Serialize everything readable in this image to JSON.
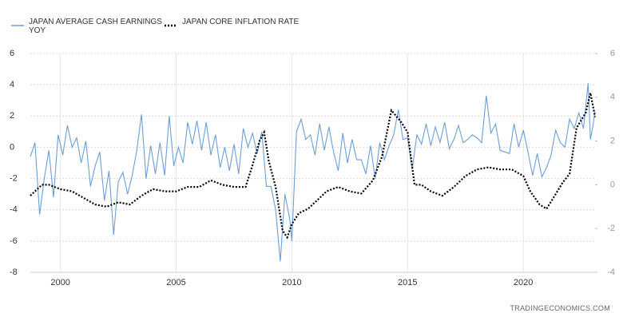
{
  "chart_data": {
    "type": "line",
    "source": "TRADINGECONOMICS.COM",
    "xlim": [
      1998.7,
      2023.1
    ],
    "xticks": [
      2000,
      2005,
      2010,
      2015,
      2020
    ],
    "ylim": [
      -8,
      6
    ],
    "yticks": [
      6,
      4,
      2,
      0,
      -2,
      -4,
      -6,
      -8
    ],
    "y2lim": [
      -4,
      6
    ],
    "y2ticks": [
      6,
      4,
      2,
      0,
      -2,
      -4
    ],
    "grid": true,
    "series": [
      {
        "name": "JAPAN AVERAGE CASH EARNINGS YOY",
        "color": "#6a9fd8",
        "style": "solid",
        "x": [
          1998.7,
          1998.9,
          1999.1,
          1999.3,
          1999.5,
          1999.7,
          1999.9,
          2000.1,
          2000.3,
          2000.5,
          2000.7,
          2000.9,
          2001.1,
          2001.3,
          2001.5,
          2001.7,
          2001.9,
          2002.1,
          2002.3,
          2002.5,
          2002.7,
          2002.9,
          2003.1,
          2003.3,
          2003.5,
          2003.7,
          2003.9,
          2004.1,
          2004.3,
          2004.5,
          2004.7,
          2004.9,
          2005.1,
          2005.3,
          2005.5,
          2005.7,
          2005.9,
          2006.1,
          2006.3,
          2006.5,
          2006.7,
          2006.9,
          2007.1,
          2007.3,
          2007.5,
          2007.7,
          2007.9,
          2008.1,
          2008.3,
          2008.5,
          2008.7,
          2008.9,
          2009.1,
          2009.3,
          2009.5,
          2009.7,
          2009.9,
          2010.0,
          2010.2,
          2010.4,
          2010.6,
          2010.8,
          2011.0,
          2011.2,
          2011.4,
          2011.6,
          2011.8,
          2012.0,
          2012.2,
          2012.4,
          2012.6,
          2012.8,
          2013.0,
          2013.2,
          2013.4,
          2013.6,
          2013.8,
          2014.0,
          2014.2,
          2014.4,
          2014.6,
          2014.8,
          2015.0,
          2015.2,
          2015.4,
          2015.6,
          2015.8,
          2016.0,
          2016.2,
          2016.4,
          2016.6,
          2016.8,
          2017.0,
          2017.2,
          2017.4,
          2017.6,
          2017.8,
          2018.0,
          2018.2,
          2018.4,
          2018.6,
          2018.8,
          2019.0,
          2019.2,
          2019.4,
          2019.6,
          2019.8,
          2020.0,
          2020.2,
          2020.4,
          2020.6,
          2020.8,
          2021.0,
          2021.2,
          2021.4,
          2021.6,
          2021.8,
          2022.0,
          2022.2,
          2022.4,
          2022.6,
          2022.8,
          2022.9,
          2023.0,
          2023.1
        ],
        "values": [
          -0.6,
          0.3,
          -4.3,
          -2,
          -0.2,
          -3.2,
          0.8,
          -0.5,
          1.4,
          0,
          0.6,
          -1,
          0.4,
          -2.5,
          -1.2,
          -0.3,
          -3.4,
          -1.5,
          -5.6,
          -2.2,
          -1.6,
          -3,
          -1.8,
          -0.2,
          2.1,
          -2,
          0.1,
          -1.7,
          0.3,
          -1.8,
          2,
          -1.2,
          0,
          -1,
          1.6,
          0.2,
          1.7,
          -0.2,
          1.6,
          -0.5,
          0.8,
          -1.3,
          0,
          -1.5,
          0.2,
          -1.7,
          1.2,
          0,
          0.9,
          -0.4,
          1,
          -2.5,
          -2.5,
          -4,
          -7.3,
          -3,
          -4.5,
          -6,
          1,
          1.8,
          0.5,
          0.8,
          -0.5,
          1.5,
          -0.2,
          1.3,
          -0.3,
          -1.5,
          0.9,
          -1,
          0.5,
          -0.8,
          -0.8,
          -1.7,
          0.1,
          -2,
          0.3,
          -0.8,
          0.1,
          0.8,
          2.4,
          0.5,
          0.6,
          -1.4,
          0.8,
          0.2,
          1.5,
          0.1,
          1.3,
          0.3,
          1.6,
          -0.1,
          0.5,
          1.4,
          0.3,
          0.5,
          0.8,
          0.6,
          0.3,
          3.3,
          0.9,
          1.5,
          -0.2,
          -0.3,
          -0.4,
          1.5,
          0,
          1.1,
          -0.3,
          -1.8,
          -0.4,
          -1.9,
          -1.3,
          -0.5,
          1.1,
          0.3,
          0,
          1.8,
          1.2,
          2.2,
          1.2,
          4.1,
          0.5,
          1.3,
          2.3
        ]
      },
      {
        "name": "JAPAN CORE INFLATION RATE",
        "color": "#000000",
        "style": "dotted",
        "axis": "y2",
        "x": [
          1998.7,
          1999.2,
          1999.5,
          2000,
          2000.5,
          2001,
          2001.5,
          2002,
          2002.5,
          2003,
          2003.5,
          2004,
          2004.5,
          2005,
          2005.5,
          2006,
          2006.5,
          2007,
          2007.5,
          2008,
          2008.3,
          2008.6,
          2008.8,
          2009,
          2009.3,
          2009.6,
          2009.8,
          2010,
          2010.3,
          2010.7,
          2011,
          2011.5,
          2012,
          2012.5,
          2013,
          2013.5,
          2013.9,
          2014.3,
          2014.7,
          2015,
          2015.3,
          2015.6,
          2016,
          2016.5,
          2017,
          2017.5,
          2018,
          2018.5,
          2019,
          2019.5,
          2020,
          2020.3,
          2020.7,
          2021,
          2021.3,
          2021.7,
          2022,
          2022.3,
          2022.7,
          2022.9,
          2023.1
        ],
        "values": [
          -0.5,
          0,
          0,
          -0.2,
          -0.3,
          -0.6,
          -0.9,
          -1,
          -0.8,
          -0.9,
          -0.5,
          -0.2,
          -0.3,
          -0.3,
          -0.1,
          -0.1,
          0.2,
          0,
          -0.1,
          -0.1,
          0.9,
          2,
          2.4,
          1.1,
          -0.1,
          -2.1,
          -2.4,
          -1.8,
          -1.3,
          -1.1,
          -0.8,
          -0.3,
          -0.1,
          -0.3,
          -0.4,
          0.2,
          1.3,
          3.4,
          2.9,
          2.4,
          0,
          0,
          -0.3,
          -0.5,
          -0.1,
          0.4,
          0.7,
          0.8,
          0.7,
          0.7,
          0.4,
          -0.3,
          -0.9,
          -1.1,
          -0.6,
          0.1,
          0.5,
          2.6,
          3.3,
          4.2,
          3.1
        ]
      }
    ]
  }
}
